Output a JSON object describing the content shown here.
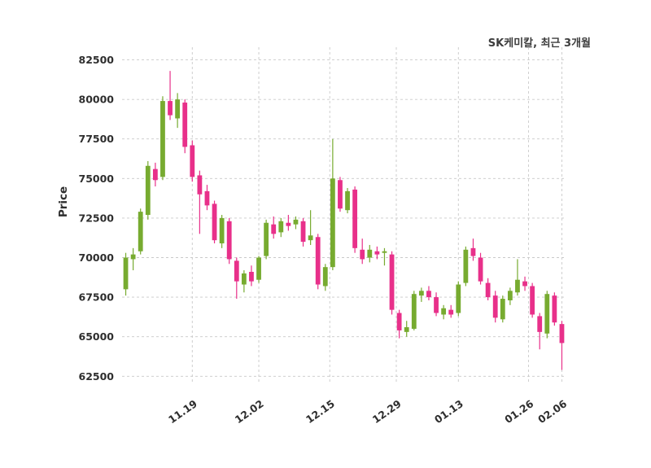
{
  "chart": {
    "title": "SK케미칼, 최근 3개월"
  },
  "chart_data": {
    "type": "candlestick",
    "title": "SK케미칼, 최근 3개월",
    "ylabel": "Price",
    "xlabel": "",
    "grid": true,
    "legend_position": "none",
    "ylim": [
      62000,
      83300
    ],
    "y_ticks": [
      62500,
      65000,
      67500,
      70000,
      72500,
      75000,
      77500,
      80000,
      82500
    ],
    "x_ticks": [
      {
        "label": "11.19",
        "index": 9
      },
      {
        "label": "12.02",
        "index": 18
      },
      {
        "label": "12.15",
        "index": 27.6
      },
      {
        "label": "12.29",
        "index": 36.6
      },
      {
        "label": "01.13",
        "index": 45
      },
      {
        "label": "01.26",
        "index": 54.5
      },
      {
        "label": "02.06",
        "index": 59
      }
    ],
    "colors": {
      "up": "#77ab30",
      "down": "#e8308a",
      "grid": "#c9c9c9",
      "text": "#2e2e2e"
    },
    "candles": [
      {
        "date": "11.06",
        "open": 68000,
        "high": 70300,
        "low": 67600,
        "close": 70000
      },
      {
        "date": "11.07",
        "open": 69900,
        "high": 70600,
        "low": 69200,
        "close": 70200
      },
      {
        "date": "11.08",
        "open": 70400,
        "high": 73100,
        "low": 70200,
        "close": 72900
      },
      {
        "date": "11.11",
        "open": 72700,
        "high": 76100,
        "low": 72400,
        "close": 75800
      },
      {
        "date": "11.12",
        "open": 75600,
        "high": 76000,
        "low": 74500,
        "close": 74900
      },
      {
        "date": "11.13",
        "open": 75100,
        "high": 80200,
        "low": 74900,
        "close": 79900
      },
      {
        "date": "11.14",
        "open": 79900,
        "high": 81800,
        "low": 78700,
        "close": 79000
      },
      {
        "date": "11.15",
        "open": 78800,
        "high": 80400,
        "low": 78200,
        "close": 80000
      },
      {
        "date": "11.18",
        "open": 79800,
        "high": 80000,
        "low": 76600,
        "close": 77000
      },
      {
        "date": "11.19",
        "open": 77100,
        "high": 77400,
        "low": 74800,
        "close": 75100
      },
      {
        "date": "11.20",
        "open": 75200,
        "high": 75500,
        "low": 71500,
        "close": 74000
      },
      {
        "date": "11.21",
        "open": 74200,
        "high": 74600,
        "low": 73000,
        "close": 73300
      },
      {
        "date": "11.22",
        "open": 73400,
        "high": 73600,
        "low": 70900,
        "close": 71100
      },
      {
        "date": "11.25",
        "open": 70900,
        "high": 72700,
        "low": 70600,
        "close": 72500
      },
      {
        "date": "11.26",
        "open": 72300,
        "high": 72500,
        "low": 69600,
        "close": 69900
      },
      {
        "date": "11.27",
        "open": 69800,
        "high": 70000,
        "low": 67400,
        "close": 68500
      },
      {
        "date": "11.28",
        "open": 68300,
        "high": 69200,
        "low": 67800,
        "close": 69000
      },
      {
        "date": "11.29",
        "open": 69100,
        "high": 69500,
        "low": 68200,
        "close": 68500
      },
      {
        "date": "12.02",
        "open": 68600,
        "high": 70100,
        "low": 68400,
        "close": 70000
      },
      {
        "date": "12.03",
        "open": 70100,
        "high": 72400,
        "low": 69900,
        "close": 72200
      },
      {
        "date": "12.04",
        "open": 72100,
        "high": 72600,
        "low": 71200,
        "close": 71500
      },
      {
        "date": "12.05",
        "open": 71600,
        "high": 72500,
        "low": 71300,
        "close": 72300
      },
      {
        "date": "12.06",
        "open": 72200,
        "high": 72700,
        "low": 71700,
        "close": 72000
      },
      {
        "date": "12.09",
        "open": 72100,
        "high": 72600,
        "low": 71800,
        "close": 72400
      },
      {
        "date": "12.10",
        "open": 72300,
        "high": 72500,
        "low": 70700,
        "close": 71000
      },
      {
        "date": "12.11",
        "open": 71100,
        "high": 73000,
        "low": 70800,
        "close": 71400
      },
      {
        "date": "12.12",
        "open": 71300,
        "high": 71500,
        "low": 68000,
        "close": 68300
      },
      {
        "date": "12.13",
        "open": 68200,
        "high": 69600,
        "low": 67900,
        "close": 69400
      },
      {
        "date": "12.16",
        "open": 69400,
        "high": 77500,
        "low": 69200,
        "close": 75000
      },
      {
        "date": "12.17",
        "open": 74900,
        "high": 75100,
        "low": 72900,
        "close": 73100
      },
      {
        "date": "12.18",
        "open": 73000,
        "high": 74400,
        "low": 72800,
        "close": 74200
      },
      {
        "date": "12.19",
        "open": 74300,
        "high": 74500,
        "low": 70300,
        "close": 70600
      },
      {
        "date": "12.20",
        "open": 70500,
        "high": 71200,
        "low": 69600,
        "close": 69900
      },
      {
        "date": "12.23",
        "open": 70000,
        "high": 70800,
        "low": 69700,
        "close": 70500
      },
      {
        "date": "12.24",
        "open": 70400,
        "high": 70700,
        "low": 69900,
        "close": 70200
      },
      {
        "date": "12.26",
        "open": 70300,
        "high": 70600,
        "low": 69500,
        "close": 70400
      },
      {
        "date": "12.27",
        "open": 70200,
        "high": 70400,
        "low": 66400,
        "close": 66700
      },
      {
        "date": "12.30",
        "open": 66500,
        "high": 66700,
        "low": 64900,
        "close": 65400
      },
      {
        "date": "01.02",
        "open": 65300,
        "high": 66000,
        "low": 65000,
        "close": 65600
      },
      {
        "date": "01.03",
        "open": 65500,
        "high": 67900,
        "low": 65400,
        "close": 67700
      },
      {
        "date": "01.06",
        "open": 67600,
        "high": 68100,
        "low": 67200,
        "close": 67900
      },
      {
        "date": "01.07",
        "open": 67900,
        "high": 68200,
        "low": 67300,
        "close": 67500
      },
      {
        "date": "01.08",
        "open": 67500,
        "high": 67800,
        "low": 66300,
        "close": 66500
      },
      {
        "date": "01.09",
        "open": 66400,
        "high": 67000,
        "low": 66100,
        "close": 66800
      },
      {
        "date": "01.10",
        "open": 66700,
        "high": 67000,
        "low": 66200,
        "close": 66400
      },
      {
        "date": "01.13",
        "open": 66500,
        "high": 68500,
        "low": 66300,
        "close": 68300
      },
      {
        "date": "01.14",
        "open": 68400,
        "high": 70700,
        "low": 68200,
        "close": 70500
      },
      {
        "date": "01.15",
        "open": 70600,
        "high": 71200,
        "low": 69800,
        "close": 70100
      },
      {
        "date": "01.16",
        "open": 70000,
        "high": 70300,
        "low": 68300,
        "close": 68500
      },
      {
        "date": "01.17",
        "open": 68400,
        "high": 68700,
        "low": 67300,
        "close": 67500
      },
      {
        "date": "01.20",
        "open": 67600,
        "high": 67900,
        "low": 65900,
        "close": 66200
      },
      {
        "date": "01.21",
        "open": 66100,
        "high": 67600,
        "low": 65900,
        "close": 67400
      },
      {
        "date": "01.22",
        "open": 67300,
        "high": 68100,
        "low": 67000,
        "close": 67900
      },
      {
        "date": "01.23",
        "open": 67800,
        "high": 69900,
        "low": 67600,
        "close": 68600
      },
      {
        "date": "01.24",
        "open": 68500,
        "high": 68800,
        "low": 67900,
        "close": 68200
      },
      {
        "date": "01.31",
        "open": 68200,
        "high": 68400,
        "low": 66200,
        "close": 66400
      },
      {
        "date": "02.03",
        "open": 66300,
        "high": 66500,
        "low": 64200,
        "close": 65300
      },
      {
        "date": "02.04",
        "open": 65200,
        "high": 67900,
        "low": 64900,
        "close": 67700
      },
      {
        "date": "02.05",
        "open": 67600,
        "high": 67800,
        "low": 65700,
        "close": 65900
      },
      {
        "date": "02.06",
        "open": 65800,
        "high": 66000,
        "low": 62900,
        "close": 64600
      }
    ]
  }
}
